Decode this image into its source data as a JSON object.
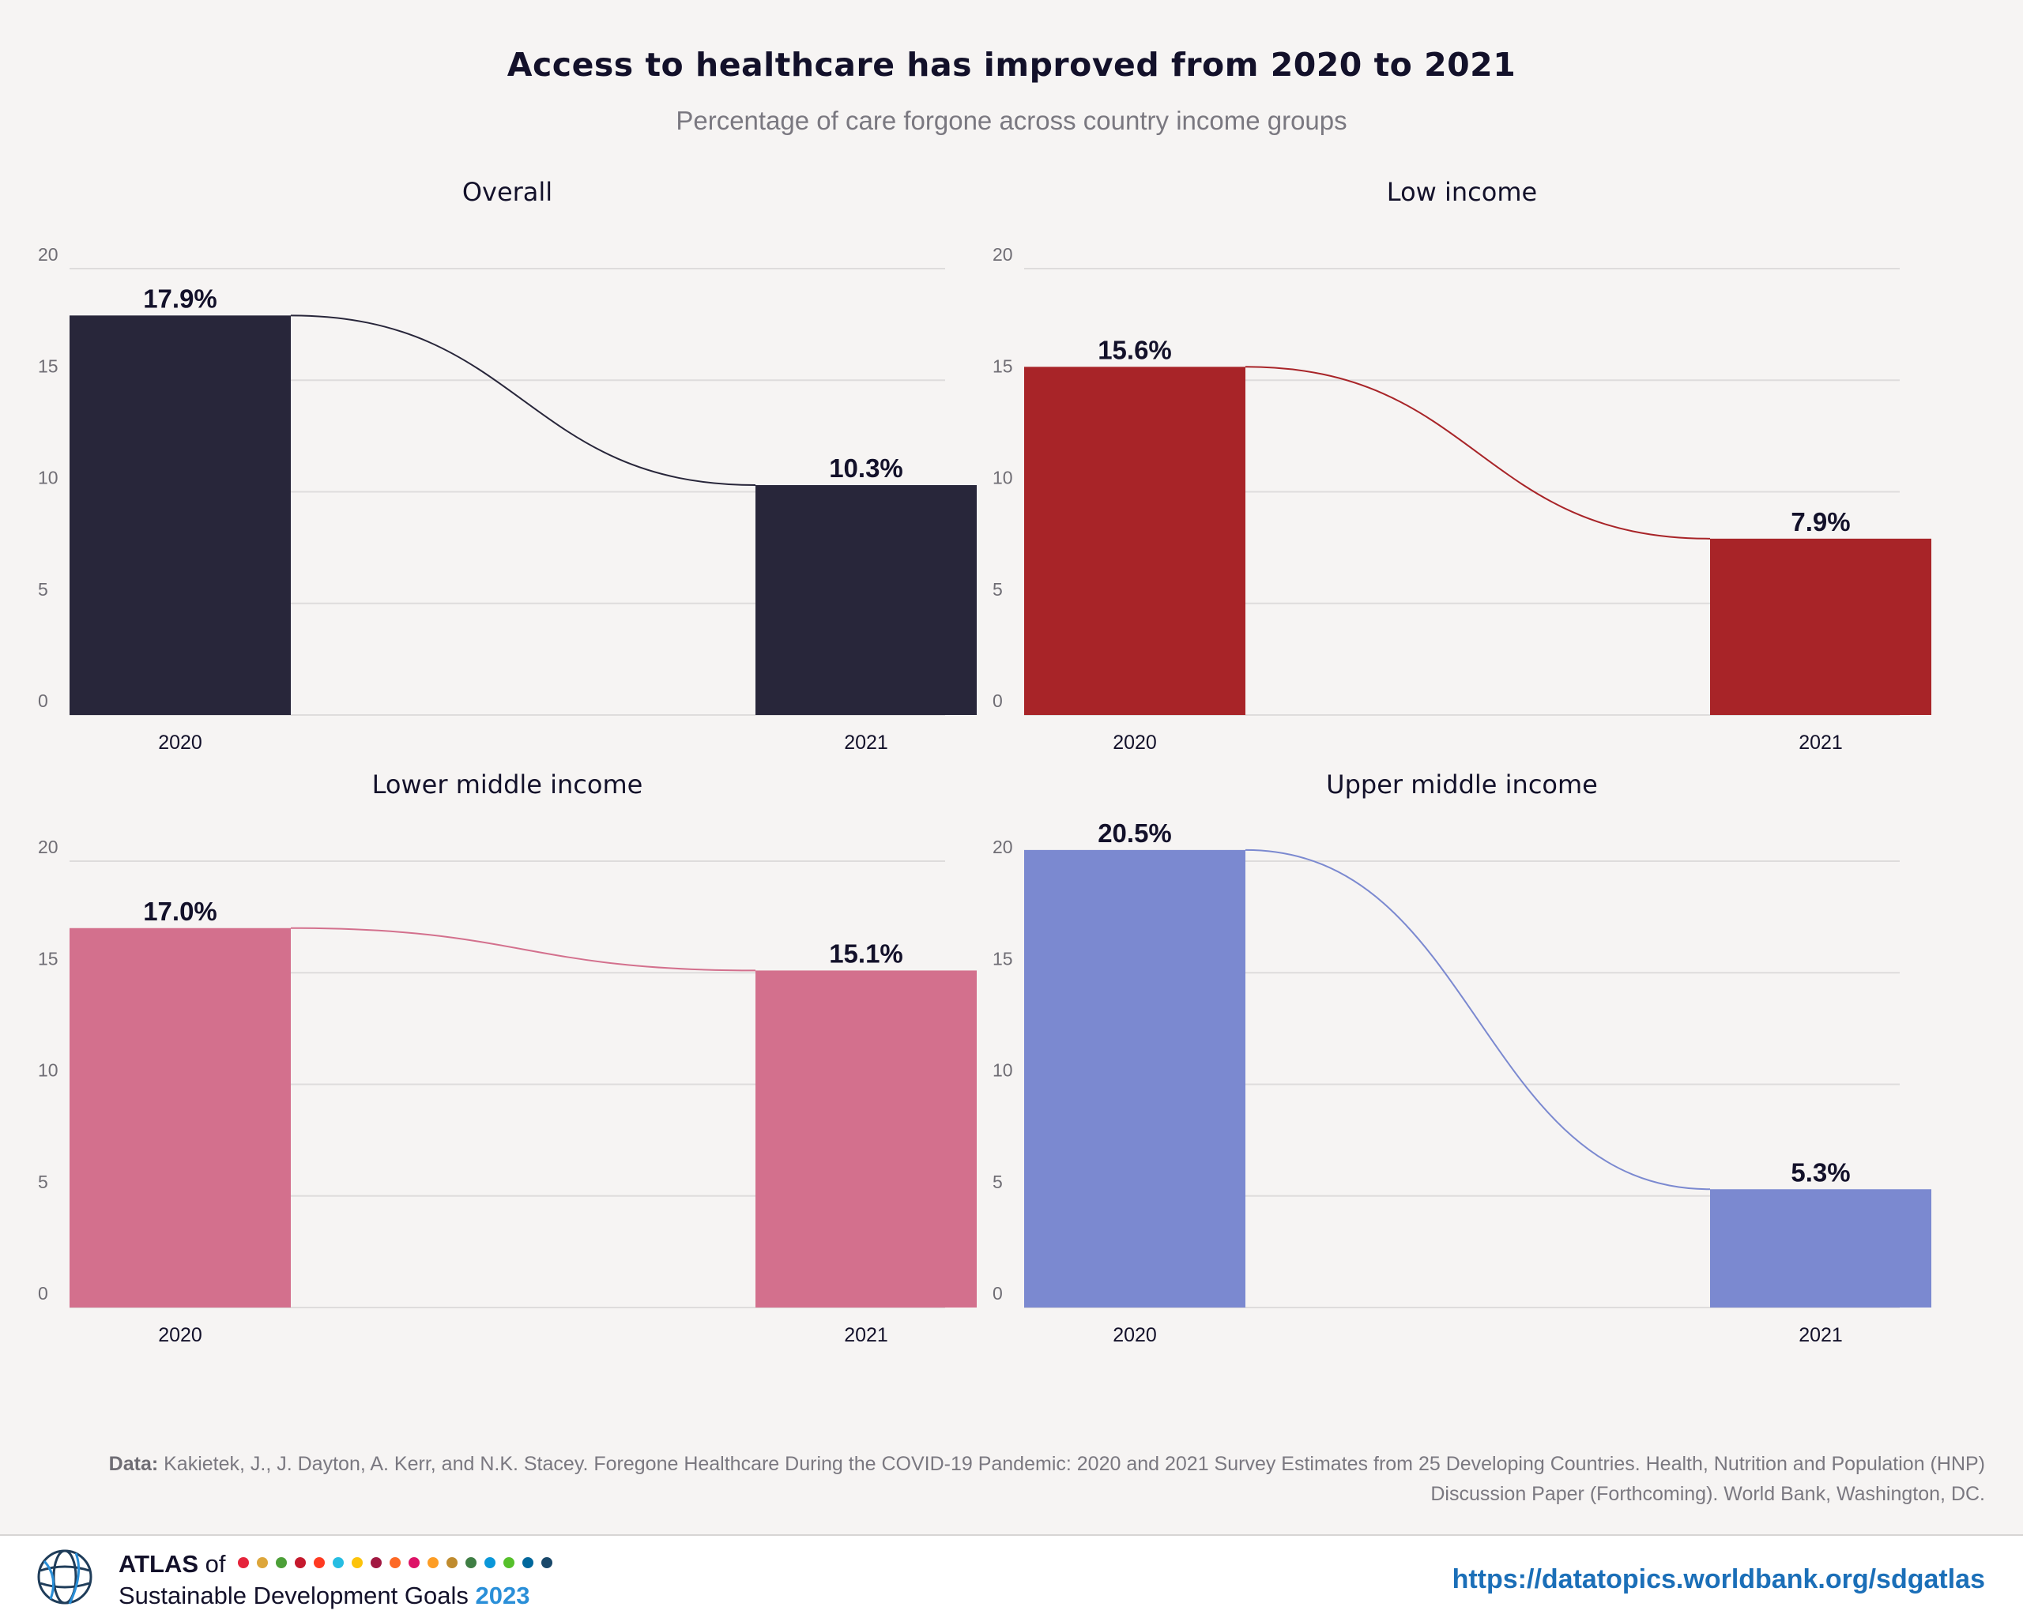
{
  "header": {
    "title": "Access to healthcare has improved from 2020 to 2021",
    "subtitle": "Percentage of care forgone across country income groups"
  },
  "chart_data": [
    {
      "type": "bar",
      "title": "Overall",
      "categories": [
        "2020",
        "2021"
      ],
      "values": [
        17.9,
        10.3
      ],
      "labels": [
        "17.9%",
        "10.3%"
      ],
      "ylim": [
        0,
        20
      ],
      "yticks": [
        "0",
        "5",
        "10",
        "15",
        "20"
      ],
      "grid": true,
      "color": "#28263a"
    },
    {
      "type": "bar",
      "title": "Low income",
      "categories": [
        "2020",
        "2021"
      ],
      "values": [
        15.6,
        7.9
      ],
      "labels": [
        "15.6%",
        "7.9%"
      ],
      "ylim": [
        0,
        20
      ],
      "yticks": [
        "0",
        "5",
        "10",
        "15",
        "20"
      ],
      "grid": true,
      "color": "#a82428"
    },
    {
      "type": "bar",
      "title": "Lower middle income",
      "categories": [
        "2020",
        "2021"
      ],
      "values": [
        17.0,
        15.1
      ],
      "labels": [
        "17.0%",
        "15.1%"
      ],
      "ylim": [
        0,
        20
      ],
      "yticks": [
        "0",
        "5",
        "10",
        "15",
        "20"
      ],
      "grid": true,
      "color": "#d3708d"
    },
    {
      "type": "bar",
      "title": "Upper middle income",
      "categories": [
        "2020",
        "2021"
      ],
      "values": [
        20.5,
        5.3
      ],
      "labels": [
        "20.5%",
        "5.3%"
      ],
      "ylim": [
        0,
        20
      ],
      "yticks": [
        "0",
        "5",
        "10",
        "15",
        "20"
      ],
      "grid": true,
      "color": "#7b89d0"
    }
  ],
  "source": {
    "label": "Data:",
    "text": "Kakietek, J., J. Dayton, A. Kerr, and N.K. Stacey. Foregone Healthcare During the COVID-19 Pandemic: 2020 and 2021 Survey Estimates from 25 Developing Countries. Health, Nutrition and Population (HNP) Discussion Paper (Forthcoming). World Bank, Washington, DC."
  },
  "footer": {
    "atlas_word": "ATLAS",
    "of_word": "of",
    "series_name": "Sustainable Development Goals",
    "year": "2023",
    "url": "https://datatopics.worldbank.org/sdgatlas",
    "sdg_colors": [
      "#e5243b",
      "#dda63a",
      "#4c9f38",
      "#c5192d",
      "#ff3a21",
      "#26bde2",
      "#fcc30b",
      "#a21942",
      "#fd6925",
      "#dd1367",
      "#fd9d24",
      "#bf8b2e",
      "#3f7e44",
      "#0a97d9",
      "#56c02b",
      "#00689d",
      "#19486a"
    ]
  }
}
